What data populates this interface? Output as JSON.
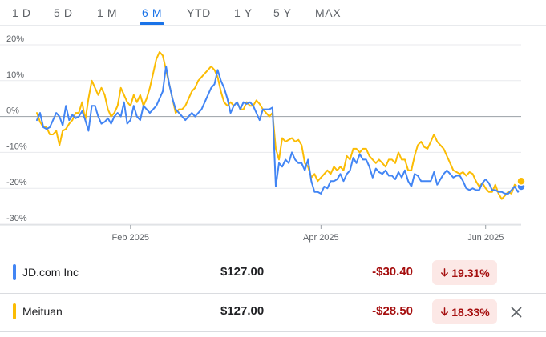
{
  "range_tabs": [
    {
      "label": "1 D",
      "active": false
    },
    {
      "label": "5 D",
      "active": false
    },
    {
      "label": "1 M",
      "active": false
    },
    {
      "label": "6 M",
      "active": true
    },
    {
      "label": "YTD",
      "active": false
    },
    {
      "label": "1 Y",
      "active": false
    },
    {
      "label": "5 Y",
      "active": false
    },
    {
      "label": "MAX",
      "active": false
    }
  ],
  "chart_data": {
    "type": "line",
    "y_ticks": [
      "20%",
      "10%",
      "0%",
      "-10%",
      "-20%",
      "-30%"
    ],
    "y_tick_values": [
      20,
      10,
      0,
      -10,
      -20,
      -30
    ],
    "ylim": [
      -30,
      20
    ],
    "x_ticks": [
      "Feb 2025",
      "Apr 2025",
      "Jun 2025"
    ],
    "x_tick_positions": [
      29,
      88,
      139
    ],
    "x_range": [
      0,
      150
    ],
    "zero_line": true,
    "series": [
      {
        "name": "JD.com Inc",
        "color": "#4285f4",
        "values": [
          [
            0,
            -1
          ],
          [
            1,
            1
          ],
          [
            2,
            -3
          ],
          [
            3,
            -3.5
          ],
          [
            4,
            -3
          ],
          [
            5,
            -1
          ],
          [
            6,
            1
          ],
          [
            7,
            0
          ],
          [
            8,
            -2.5
          ],
          [
            9,
            3
          ],
          [
            10,
            -1
          ],
          [
            11,
            0.5
          ],
          [
            12,
            -0.5
          ],
          [
            13,
            0
          ],
          [
            14,
            1.5
          ],
          [
            15,
            -1
          ],
          [
            16,
            -4
          ],
          [
            17,
            3
          ],
          [
            18,
            3
          ],
          [
            19,
            0
          ],
          [
            20,
            -2
          ],
          [
            21,
            -1.5
          ],
          [
            22,
            -0.5
          ],
          [
            23,
            -2
          ],
          [
            24,
            0
          ],
          [
            25,
            1
          ],
          [
            26,
            0
          ],
          [
            27,
            4
          ],
          [
            28,
            -2
          ],
          [
            29,
            -1
          ],
          [
            30,
            3
          ],
          [
            31,
            0
          ],
          [
            32,
            -1
          ],
          [
            33,
            3
          ],
          [
            34,
            2
          ],
          [
            35,
            1
          ],
          [
            36,
            2
          ],
          [
            37,
            3
          ],
          [
            38,
            5
          ],
          [
            39,
            7
          ],
          [
            40,
            14
          ],
          [
            41,
            9
          ],
          [
            42,
            5
          ],
          [
            43,
            2
          ],
          [
            44,
            1
          ],
          [
            45,
            0
          ],
          [
            46,
            -1
          ],
          [
            47,
            0
          ],
          [
            48,
            1
          ],
          [
            49,
            0
          ],
          [
            50,
            1
          ],
          [
            51,
            2
          ],
          [
            52,
            4
          ],
          [
            53,
            6
          ],
          [
            54,
            8
          ],
          [
            55,
            9
          ],
          [
            56,
            13
          ],
          [
            57,
            10
          ],
          [
            58,
            8
          ],
          [
            59,
            5
          ],
          [
            60,
            1
          ],
          [
            61,
            3
          ],
          [
            62,
            4
          ],
          [
            63,
            2
          ],
          [
            64,
            4
          ],
          [
            65,
            3.5
          ],
          [
            66,
            4
          ],
          [
            67,
            3
          ],
          [
            68,
            1
          ],
          [
            69,
            -1
          ],
          [
            70,
            2
          ],
          [
            71,
            2
          ],
          [
            72,
            2
          ],
          [
            73,
            2.5
          ],
          [
            74,
            -19.5
          ],
          [
            75,
            -13
          ],
          [
            76,
            -14
          ],
          [
            77,
            -12
          ],
          [
            78,
            -13
          ],
          [
            79,
            -10
          ],
          [
            80,
            -12
          ],
          [
            81,
            -13
          ],
          [
            82,
            -13
          ],
          [
            83,
            -15
          ],
          [
            84,
            -12
          ],
          [
            85,
            -18
          ],
          [
            86,
            -21
          ],
          [
            87,
            -21
          ],
          [
            88,
            -21.5
          ],
          [
            89,
            -19.5
          ],
          [
            90,
            -20
          ],
          [
            91,
            -18
          ],
          [
            92,
            -18
          ],
          [
            93,
            -17.5
          ],
          [
            94,
            -16
          ],
          [
            95,
            -18
          ],
          [
            96,
            -16
          ],
          [
            97,
            -15
          ],
          [
            98,
            -11.5
          ],
          [
            99,
            -13
          ],
          [
            100,
            -10.5
          ],
          [
            101,
            -12
          ],
          [
            102,
            -12
          ],
          [
            103,
            -14
          ],
          [
            104,
            -17
          ],
          [
            105,
            -14.5
          ],
          [
            106,
            -15.5
          ],
          [
            107,
            -16
          ],
          [
            108,
            -15
          ],
          [
            109,
            -16.5
          ],
          [
            110,
            -16.5
          ],
          [
            111,
            -17.5
          ],
          [
            112,
            -15.5
          ],
          [
            113,
            -17
          ],
          [
            114,
            -15
          ],
          [
            115,
            -18
          ],
          [
            116,
            -19.5
          ],
          [
            117,
            -16
          ],
          [
            118,
            -16.5
          ],
          [
            119,
            -18
          ],
          [
            120,
            -18
          ],
          [
            121,
            -18
          ],
          [
            122,
            -18
          ],
          [
            123,
            -15.5
          ],
          [
            124,
            -19
          ],
          [
            125,
            -17.5
          ],
          [
            126,
            -16
          ],
          [
            127,
            -15
          ],
          [
            128,
            -16
          ],
          [
            129,
            -17
          ],
          [
            130,
            -16.5
          ],
          [
            131,
            -16.5
          ],
          [
            132,
            -18
          ],
          [
            133,
            -20
          ],
          [
            134,
            -20.5
          ],
          [
            135,
            -20
          ],
          [
            136,
            -20.5
          ],
          [
            137,
            -20.5
          ],
          [
            138,
            -18.5
          ],
          [
            139,
            -17.5
          ],
          [
            140,
            -18.5
          ],
          [
            141,
            -20.5
          ],
          [
            142,
            -20.5
          ],
          [
            143,
            -21
          ],
          [
            144,
            -21
          ],
          [
            145,
            -21.5
          ],
          [
            146,
            -21.5
          ],
          [
            147,
            -20.5
          ],
          [
            148,
            -19.5
          ],
          [
            149,
            -21
          ],
          [
            150,
            -19.5
          ]
        ]
      },
      {
        "name": "Meituan",
        "color": "#fbbc04",
        "values": [
          [
            0,
            1
          ],
          [
            1,
            -1.5
          ],
          [
            2,
            -3
          ],
          [
            3,
            -3
          ],
          [
            4,
            -5
          ],
          [
            5,
            -5
          ],
          [
            6,
            -4
          ],
          [
            7,
            -8
          ],
          [
            8,
            -4
          ],
          [
            9,
            -3.5
          ],
          [
            10,
            -2
          ],
          [
            11,
            -1
          ],
          [
            12,
            1
          ],
          [
            13,
            1
          ],
          [
            14,
            4
          ],
          [
            15,
            -1
          ],
          [
            16,
            5
          ],
          [
            17,
            10
          ],
          [
            18,
            8
          ],
          [
            19,
            6
          ],
          [
            20,
            8
          ],
          [
            21,
            6
          ],
          [
            22,
            2
          ],
          [
            23,
            0
          ],
          [
            24,
            1
          ],
          [
            25,
            3
          ],
          [
            26,
            8
          ],
          [
            27,
            6
          ],
          [
            28,
            4
          ],
          [
            29,
            3
          ],
          [
            30,
            6
          ],
          [
            31,
            4
          ],
          [
            32,
            6
          ],
          [
            33,
            3
          ],
          [
            34,
            5
          ],
          [
            35,
            8
          ],
          [
            36,
            12
          ],
          [
            37,
            16
          ],
          [
            38,
            18
          ],
          [
            39,
            17
          ],
          [
            40,
            13
          ],
          [
            41,
            9
          ],
          [
            42,
            5
          ],
          [
            43,
            1
          ],
          [
            44,
            2
          ],
          [
            45,
            2
          ],
          [
            46,
            3
          ],
          [
            47,
            5
          ],
          [
            48,
            7
          ],
          [
            49,
            8
          ],
          [
            50,
            10
          ],
          [
            51,
            11
          ],
          [
            52,
            12
          ],
          [
            53,
            13
          ],
          [
            54,
            14
          ],
          [
            55,
            13
          ],
          [
            56,
            11
          ],
          [
            57,
            7
          ],
          [
            58,
            4
          ],
          [
            59,
            3
          ],
          [
            60,
            4
          ],
          [
            61,
            3
          ],
          [
            62,
            4
          ],
          [
            63,
            2
          ],
          [
            64,
            2
          ],
          [
            65,
            4
          ],
          [
            66,
            3
          ],
          [
            67,
            3
          ],
          [
            68,
            4.5
          ],
          [
            69,
            3.5
          ],
          [
            70,
            2
          ],
          [
            71,
            1
          ],
          [
            72,
            0
          ],
          [
            73,
            1
          ],
          [
            74,
            -9
          ],
          [
            75,
            -12
          ],
          [
            76,
            -6
          ],
          [
            77,
            -7
          ],
          [
            78,
            -6.5
          ],
          [
            79,
            -6
          ],
          [
            80,
            -7
          ],
          [
            81,
            -6.5
          ],
          [
            82,
            -8
          ],
          [
            83,
            -13
          ],
          [
            84,
            -14
          ],
          [
            85,
            -17
          ],
          [
            86,
            -16
          ],
          [
            87,
            -18
          ],
          [
            88,
            -17
          ],
          [
            89,
            -16
          ],
          [
            90,
            -15
          ],
          [
            91,
            -16
          ],
          [
            92,
            -14
          ],
          [
            93,
            -15
          ],
          [
            94,
            -14
          ],
          [
            95,
            -15
          ],
          [
            96,
            -11
          ],
          [
            97,
            -12
          ],
          [
            98,
            -9
          ],
          [
            99,
            -9
          ],
          [
            100,
            -10
          ],
          [
            101,
            -9
          ],
          [
            102,
            -9
          ],
          [
            103,
            -11
          ],
          [
            104,
            -12
          ],
          [
            105,
            -13
          ],
          [
            106,
            -12
          ],
          [
            107,
            -13
          ],
          [
            108,
            -14
          ],
          [
            109,
            -12
          ],
          [
            110,
            -12
          ],
          [
            111,
            -13
          ],
          [
            112,
            -10
          ],
          [
            113,
            -12
          ],
          [
            114,
            -12
          ],
          [
            115,
            -15
          ],
          [
            116,
            -15
          ],
          [
            117,
            -11
          ],
          [
            118,
            -8
          ],
          [
            119,
            -7
          ],
          [
            120,
            -8.5
          ],
          [
            121,
            -9
          ],
          [
            122,
            -7
          ],
          [
            123,
            -5
          ],
          [
            124,
            -7
          ],
          [
            125,
            -8
          ],
          [
            126,
            -9
          ],
          [
            127,
            -11
          ],
          [
            128,
            -13
          ],
          [
            129,
            -15
          ],
          [
            130,
            -15.5
          ],
          [
            131,
            -16
          ],
          [
            132,
            -15.5
          ],
          [
            133,
            -16.5
          ],
          [
            134,
            -15.5
          ],
          [
            135,
            -16
          ],
          [
            136,
            -18
          ],
          [
            137,
            -19.5
          ],
          [
            138,
            -18.5
          ],
          [
            139,
            -20
          ],
          [
            140,
            -21
          ],
          [
            141,
            -21
          ],
          [
            142,
            -19
          ],
          [
            143,
            -21.5
          ],
          [
            144,
            -23
          ],
          [
            145,
            -22
          ],
          [
            146,
            -21
          ],
          [
            147,
            -21.5
          ],
          [
            148,
            -19
          ],
          [
            149,
            -19.5
          ],
          [
            150,
            -18
          ]
        ]
      }
    ]
  },
  "holdings": [
    {
      "name": "JD.com Inc",
      "price": "$127.00",
      "change": "-$30.40",
      "pct": "19.31%",
      "color": "#4285f4",
      "show_close": false
    },
    {
      "name": "Meituan",
      "price": "$127.00",
      "change": "-$28.50",
      "pct": "18.33%",
      "color": "#fbbc04",
      "show_close": true
    }
  ]
}
